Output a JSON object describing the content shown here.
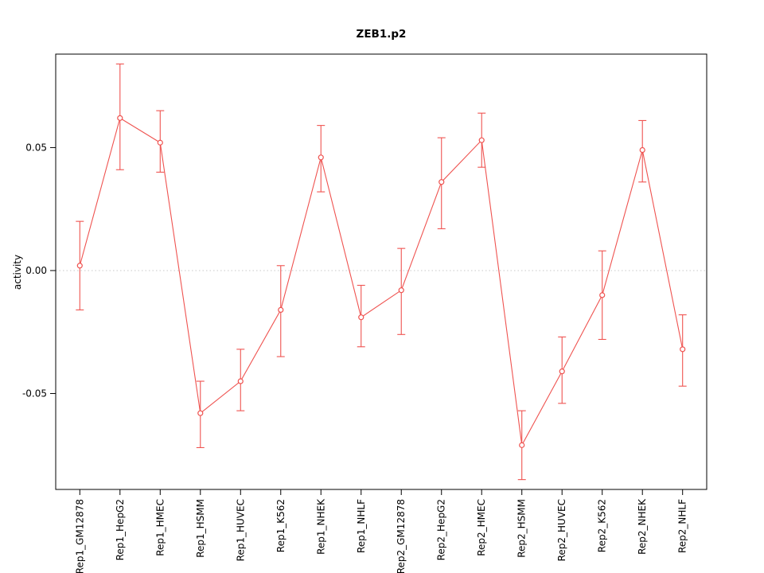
{
  "page": {
    "background": "#ffffff"
  },
  "chart_data": {
    "type": "line",
    "title": "ZEB1.p2",
    "xlabel": "",
    "ylabel": "activity",
    "legend": "none",
    "marker": "open-circle",
    "series_color": "#ef5350",
    "axis_color": "#000000",
    "grid": {
      "zero_line": true,
      "style": "dotted",
      "color": "#c8c8c8"
    },
    "ylim": [
      -0.089,
      0.088
    ],
    "ytick_values": [
      -0.05,
      0,
      0.05
    ],
    "ytick_labels": [
      "-0.05",
      "0.00",
      "0.05"
    ],
    "categories": [
      "Rep1_GM12878",
      "Rep1_HepG2",
      "Rep1_HMEC",
      "Rep1_HSMM",
      "Rep1_HUVEC",
      "Rep1_K562",
      "Rep1_NHEK",
      "Rep1_NHLF",
      "Rep2_GM12878",
      "Rep2_HepG2",
      "Rep2_HMEC",
      "Rep2_HSMM",
      "Rep2_HUVEC",
      "Rep2_K562",
      "Rep2_NHEK",
      "Rep2_NHLF"
    ],
    "series": [
      {
        "name": "ZEB1.p2 activity",
        "values": [
          0.002,
          0.062,
          0.052,
          -0.058,
          -0.045,
          -0.016,
          0.046,
          -0.019,
          -0.008,
          0.036,
          0.053,
          -0.071,
          -0.041,
          -0.01,
          0.049,
          -0.032
        ],
        "error_low": [
          -0.016,
          0.041,
          0.04,
          -0.072,
          -0.057,
          -0.035,
          0.032,
          -0.031,
          -0.026,
          0.017,
          0.042,
          -0.085,
          -0.054,
          -0.028,
          0.036,
          -0.047
        ],
        "error_high": [
          0.02,
          0.084,
          0.065,
          -0.045,
          -0.032,
          0.002,
          0.059,
          -0.006,
          0.009,
          0.054,
          0.064,
          -0.057,
          -0.027,
          0.008,
          0.061,
          -0.018
        ]
      }
    ]
  }
}
